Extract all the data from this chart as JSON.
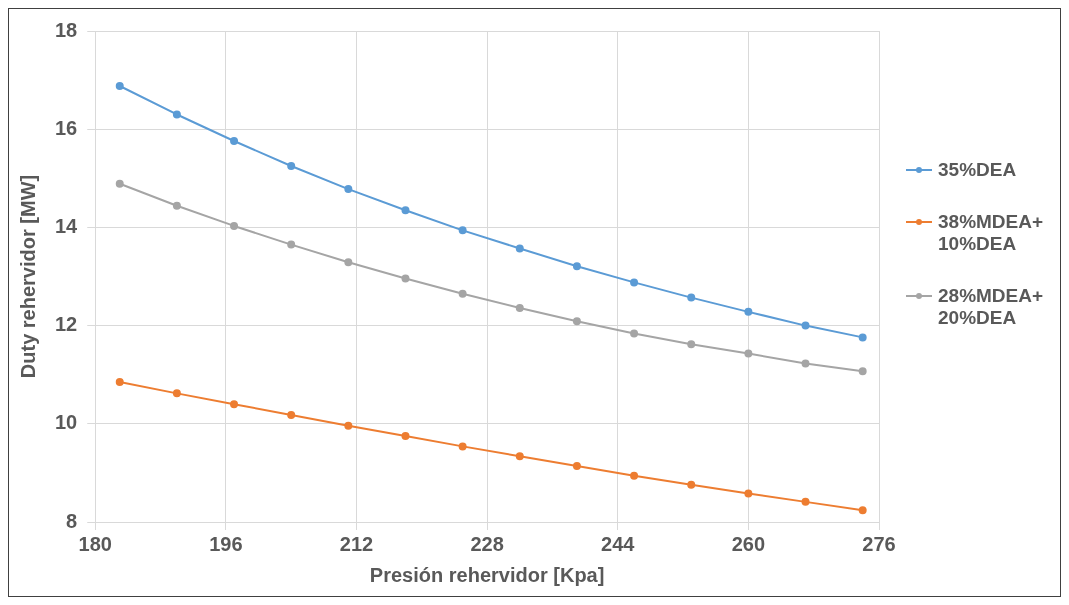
{
  "chart_data": {
    "type": "line",
    "xlabel": "Presión rehervidor [Kpa]",
    "ylabel": "Duty rehervidor [MW]",
    "x": [
      183,
      190,
      197,
      204,
      211,
      218,
      225,
      232,
      239,
      246,
      253,
      260,
      267,
      274
    ],
    "series": [
      {
        "name": "35%DEA",
        "color": "#5b9bd5",
        "values": [
          16.88,
          16.3,
          15.76,
          15.25,
          14.78,
          14.35,
          13.94,
          13.57,
          13.21,
          12.88,
          12.57,
          12.28,
          12.0,
          11.76
        ]
      },
      {
        "name": "38%MDEA+ 10%DEA",
        "color": "#ed7d31",
        "values": [
          10.85,
          10.62,
          10.4,
          10.18,
          9.96,
          9.75,
          9.54,
          9.34,
          9.14,
          8.94,
          8.76,
          8.58,
          8.41,
          8.24
        ]
      },
      {
        "name": "28%MDEA+ 20%DEA",
        "color": "#a5a5a5",
        "values": [
          14.89,
          14.44,
          14.03,
          13.65,
          13.29,
          12.96,
          12.65,
          12.36,
          12.09,
          11.84,
          11.62,
          11.43,
          11.23,
          11.07
        ]
      }
    ],
    "xlim": [
      180,
      276
    ],
    "xticks": [
      180,
      196,
      212,
      228,
      244,
      260,
      276
    ],
    "ylim": [
      8,
      18
    ],
    "yticks": [
      8,
      10,
      12,
      14,
      16,
      18
    ],
    "grid": true,
    "legend": "right",
    "marker": "circle",
    "line_style": "solid"
  }
}
